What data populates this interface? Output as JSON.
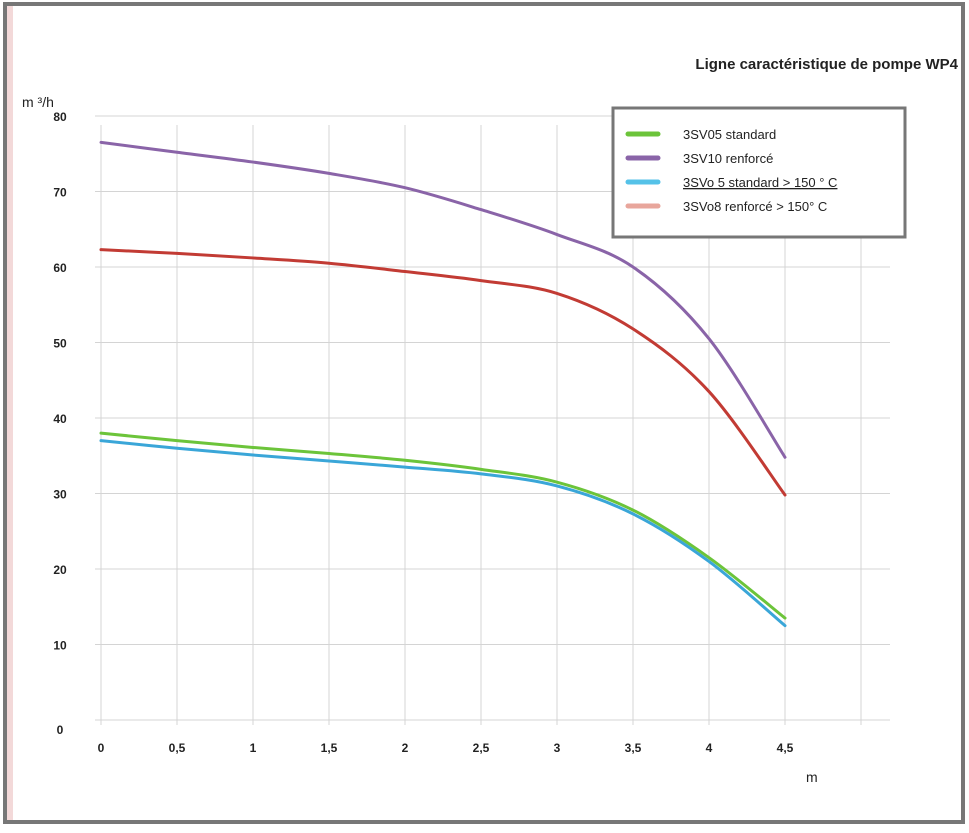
{
  "chart_data": {
    "type": "line",
    "title": "Ligne caractéristique de pompe WP4",
    "ylabel": "m ³/h",
    "xlabel": "m",
    "xlim": [
      0,
      5
    ],
    "ylim": [
      0,
      80
    ],
    "x_ticks": [
      {
        "value": 0,
        "label": "0"
      },
      {
        "value": 0.5,
        "label": "0,5"
      },
      {
        "value": 1,
        "label": "1"
      },
      {
        "value": 1.5,
        "label": "1,5"
      },
      {
        "value": 2,
        "label": "2"
      },
      {
        "value": 2.5,
        "label": "2,5"
      },
      {
        "value": 3,
        "label": "3"
      },
      {
        "value": 3.5,
        "label": "3,5"
      },
      {
        "value": 4,
        "label": "4"
      },
      {
        "value": 4.5,
        "label": "4,5"
      }
    ],
    "y_ticks": [
      {
        "value": 0,
        "label": "0"
      },
      {
        "value": 10,
        "label": "10"
      },
      {
        "value": 20,
        "label": "20"
      },
      {
        "value": 30,
        "label": "30"
      },
      {
        "value": 40,
        "label": "40"
      },
      {
        "value": 50,
        "label": "50"
      },
      {
        "value": 60,
        "label": "60"
      },
      {
        "value": 70,
        "label": "70"
      },
      {
        "value": 80,
        "label": "80"
      }
    ],
    "grid": true,
    "legend_position": "top-right",
    "series": [
      {
        "name": "3SV05 standard",
        "legend_color": "#6cc43a",
        "color": "#6cc43a",
        "x": [
          0,
          0.5,
          1,
          1.5,
          2,
          2.5,
          3,
          3.5,
          4,
          4.5
        ],
        "y": [
          38,
          37,
          36.1,
          35.3,
          34.4,
          33.2,
          31.5,
          27.8,
          21.5,
          13.5
        ]
      },
      {
        "name": "3SV10 renforcé",
        "legend_color": "#8a64a8",
        "color": "#8a64a8",
        "x": [
          0,
          0.5,
          1,
          1.5,
          2,
          2.5,
          3,
          3.5,
          4,
          4.5
        ],
        "y": [
          76.5,
          75.2,
          73.9,
          72.4,
          70.5,
          67.6,
          64.3,
          60,
          50.5,
          34.8
        ]
      },
      {
        "name": "3SVo 5 standard > 150 ° C",
        "legend_color": "#55c2e8",
        "color": "#3aa6d8",
        "x": [
          0,
          0.5,
          1,
          1.5,
          2,
          2.5,
          3,
          3.5,
          4,
          4.5
        ],
        "y": [
          37,
          36,
          35.1,
          34.3,
          33.5,
          32.6,
          31,
          27.3,
          21,
          12.5
        ]
      },
      {
        "name": "3SVo8  renforcé > 150° C",
        "legend_color": "#e8a69c",
        "color": "#c23b34",
        "x": [
          0,
          0.5,
          1,
          1.5,
          2,
          2.5,
          3,
          3.5,
          4,
          4.5
        ],
        "y": [
          62.3,
          61.8,
          61.2,
          60.5,
          59.4,
          58.2,
          56.5,
          51.8,
          43.5,
          29.8
        ]
      }
    ]
  }
}
